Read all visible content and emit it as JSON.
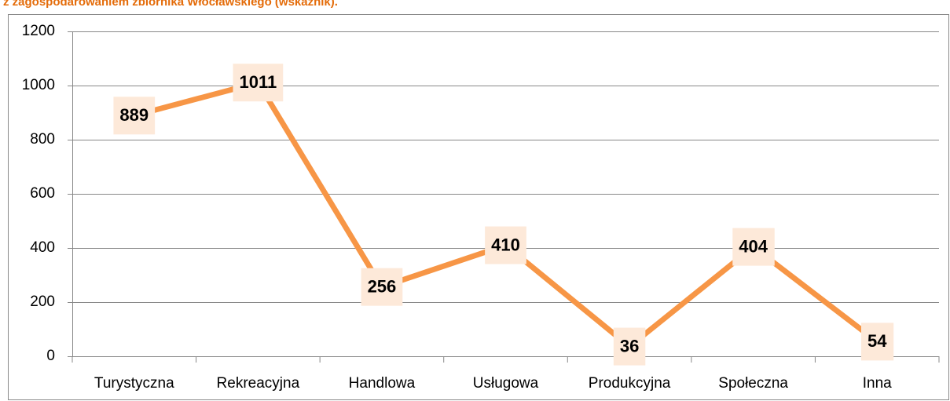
{
  "chart_data": {
    "type": "line",
    "title": "z zagospodarowaniem zbiornika Włocławskiego (wskaźnik).",
    "categories": [
      "Turystyczna",
      "Rekreacyjna",
      "Handlowa",
      "Usługowa",
      "Produkcyjna",
      "Społeczna",
      "Inna"
    ],
    "values": [
      889,
      1011,
      256,
      410,
      36,
      404,
      54
    ],
    "color": "#f79646",
    "ylim": [
      0,
      1200
    ],
    "yticks": [
      0,
      200,
      400,
      600,
      800,
      1000,
      1200
    ],
    "grid": true
  }
}
